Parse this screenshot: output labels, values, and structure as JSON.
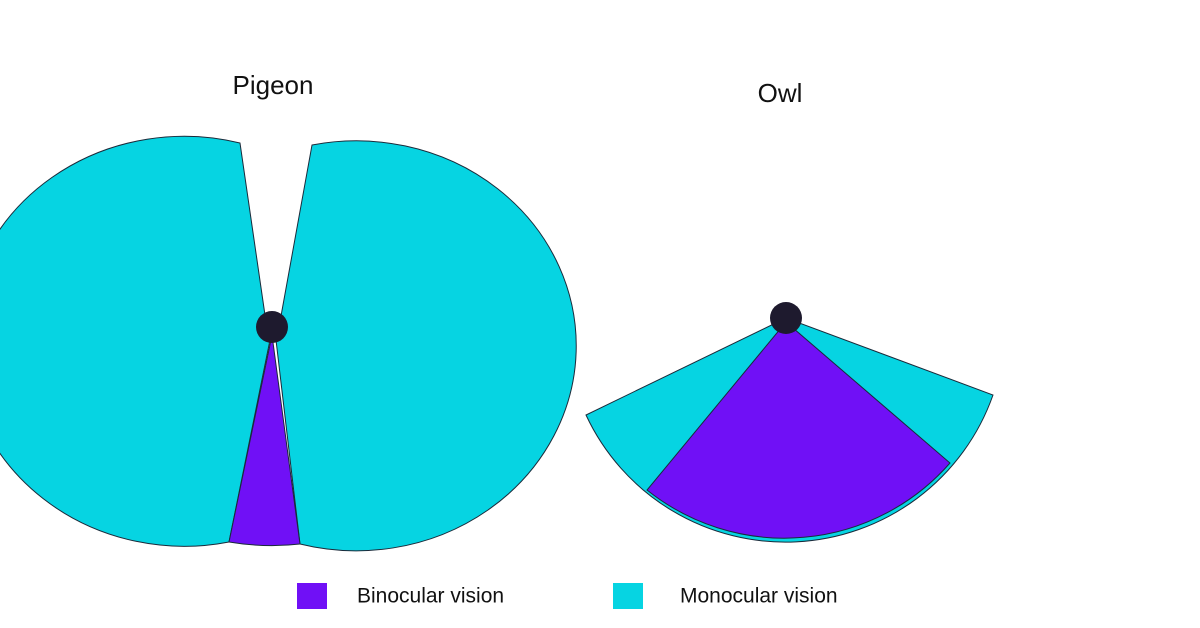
{
  "diagrams": [
    {
      "title": "Pigeon"
    },
    {
      "title": "Owl"
    }
  ],
  "legend": [
    {
      "label": "Binocular vision"
    },
    {
      "label": "Monocular vision"
    }
  ]
}
